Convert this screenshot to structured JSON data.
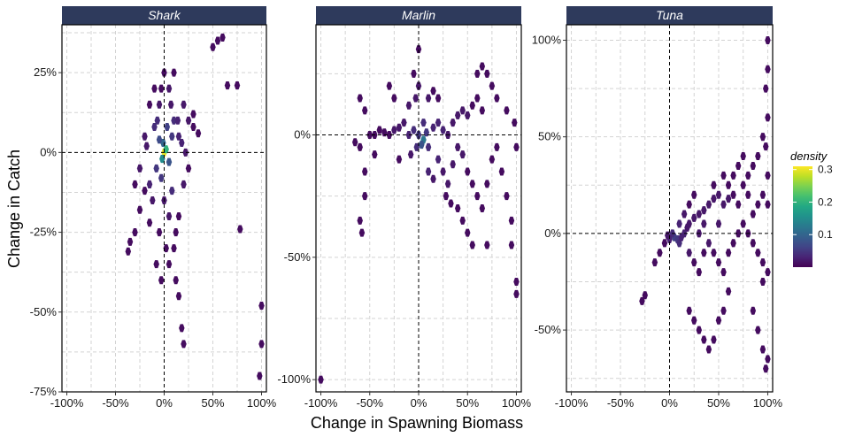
{
  "colors": {
    "strip": "#2e3a5c",
    "grid": "#d3d3d3",
    "panel_border": "#000000",
    "viridis": [
      "#440154",
      "#482475",
      "#414487",
      "#355f8d",
      "#2a788e",
      "#21918c",
      "#22a884",
      "#44bf70",
      "#7ad151",
      "#bddf26",
      "#fde725"
    ]
  },
  "chart_data": {
    "type": "hexbin",
    "xlabel": "Change in Spawning Biomass",
    "ylabel": "Change in Catch",
    "x_ticks": [
      -100,
      -50,
      0,
      50,
      100
    ],
    "x_tick_labels": [
      "-100%",
      "-50%",
      "0%",
      "50%",
      "100%"
    ],
    "xlim": [
      -105,
      105
    ],
    "reference_lines": {
      "x": 0,
      "y": 0,
      "style": "dashed"
    },
    "legend": {
      "title": "density",
      "placement": "right",
      "range": [
        0,
        0.31
      ],
      "ticks": [
        0.1,
        0.2,
        0.3
      ],
      "tick_labels": [
        "0.1",
        "0.2",
        "0.3"
      ]
    },
    "panels": [
      {
        "name": "Shark",
        "ylim": [
          -75,
          40
        ],
        "y_ticks": [
          -75,
          -50,
          -25,
          0,
          25
        ],
        "y_tick_labels": [
          "-75%",
          "-50%",
          "-25%",
          "0%",
          "25%"
        ],
        "points": [
          [
            0,
            0,
            0.3
          ],
          [
            -2,
            -2,
            0.15
          ],
          [
            2,
            1,
            0.2
          ],
          [
            -1,
            3,
            0.1
          ],
          [
            5,
            -3,
            0.08
          ],
          [
            -5,
            4,
            0.07
          ],
          [
            8,
            5,
            0.05
          ],
          [
            -8,
            -5,
            0.05
          ],
          [
            10,
            10,
            0.04
          ],
          [
            -10,
            8,
            0.04
          ],
          [
            15,
            5,
            0.03
          ],
          [
            -15,
            -10,
            0.03
          ],
          [
            20,
            15,
            0.02
          ],
          [
            -20,
            5,
            0.02
          ],
          [
            25,
            10,
            0.02
          ],
          [
            30,
            12,
            0.01
          ],
          [
            -25,
            -5,
            0.02
          ],
          [
            -30,
            -10,
            0.01
          ],
          [
            5,
            20,
            0.02
          ],
          [
            10,
            25,
            0.01
          ],
          [
            -5,
            15,
            0.02
          ],
          [
            -10,
            20,
            0.01
          ],
          [
            0,
            -15,
            0.02
          ],
          [
            5,
            -20,
            0.02
          ],
          [
            -5,
            -25,
            0.01
          ],
          [
            10,
            -30,
            0.01
          ],
          [
            15,
            -20,
            0.01
          ],
          [
            20,
            -10,
            0.02
          ],
          [
            25,
            -5,
            0.01
          ],
          [
            -15,
            15,
            0.01
          ],
          [
            55,
            35,
            0.01
          ],
          [
            60,
            36,
            0.01
          ],
          [
            65,
            21,
            0.01
          ],
          [
            75,
            21,
            0.01
          ],
          [
            50,
            33,
            0.01
          ],
          [
            -35,
            -28,
            0.01
          ],
          [
            -37,
            -31,
            0.01
          ],
          [
            -30,
            -25,
            0.01
          ],
          [
            12,
            -40,
            0.01
          ],
          [
            15,
            -45,
            0.01
          ],
          [
            18,
            -55,
            0.01
          ],
          [
            20,
            -60,
            0.01
          ],
          [
            100,
            -48,
            0.01
          ],
          [
            100,
            -60,
            0.01
          ],
          [
            98,
            -70,
            0.01
          ],
          [
            78,
            -24,
            0.01
          ],
          [
            8,
            -12,
            0.04
          ],
          [
            -3,
            -8,
            0.05
          ],
          [
            3,
            8,
            0.06
          ],
          [
            -12,
            -15,
            0.02
          ],
          [
            -25,
            -18,
            0.01
          ],
          [
            -20,
            -12,
            0.01
          ],
          [
            0,
            25,
            0.01
          ],
          [
            -3,
            20,
            0.01
          ],
          [
            14,
            10,
            0.03
          ],
          [
            18,
            3,
            0.03
          ],
          [
            -7,
            10,
            0.04
          ],
          [
            7,
            15,
            0.02
          ],
          [
            -18,
            2,
            0.02
          ],
          [
            22,
            0,
            0.02
          ],
          [
            30,
            8,
            0.01
          ],
          [
            35,
            6,
            0.01
          ],
          [
            2,
            -30,
            0.01
          ],
          [
            -8,
            -35,
            0.01
          ],
          [
            5,
            -35,
            0.01
          ],
          [
            -3,
            -40,
            0.01
          ],
          [
            12,
            -25,
            0.01
          ],
          [
            -15,
            -22,
            0.01
          ]
        ]
      },
      {
        "name": "Marlin",
        "ylim": [
          -105,
          45
        ],
        "y_ticks": [
          -100,
          -50,
          0
        ],
        "y_tick_labels": [
          "-100%",
          "-50%",
          "0%"
        ],
        "points": [
          [
            5,
            -2,
            0.12
          ],
          [
            3,
            -4,
            0.08
          ],
          [
            0,
            0,
            0.05
          ],
          [
            8,
            1,
            0.05
          ],
          [
            10,
            -5,
            0.04
          ],
          [
            -5,
            2,
            0.04
          ],
          [
            -10,
            0,
            0.03
          ],
          [
            15,
            3,
            0.03
          ],
          [
            20,
            5,
            0.03
          ],
          [
            25,
            2,
            0.03
          ],
          [
            30,
            0,
            0.02
          ],
          [
            35,
            5,
            0.02
          ],
          [
            40,
            8,
            0.02
          ],
          [
            45,
            10,
            0.02
          ],
          [
            50,
            8,
            0.02
          ],
          [
            55,
            12,
            0.01
          ],
          [
            60,
            15,
            0.01
          ],
          [
            65,
            10,
            0.01
          ],
          [
            20,
            -10,
            0.03
          ],
          [
            25,
            -15,
            0.02
          ],
          [
            30,
            -20,
            0.02
          ],
          [
            35,
            -12,
            0.02
          ],
          [
            40,
            -5,
            0.02
          ],
          [
            45,
            -8,
            0.02
          ],
          [
            50,
            -15,
            0.01
          ],
          [
            55,
            -20,
            0.01
          ],
          [
            60,
            -25,
            0.01
          ],
          [
            65,
            -30,
            0.01
          ],
          [
            70,
            -20,
            0.01
          ],
          [
            -15,
            5,
            0.02
          ],
          [
            -20,
            3,
            0.02
          ],
          [
            -25,
            2,
            0.02
          ],
          [
            -30,
            0,
            0.01
          ],
          [
            -35,
            1,
            0.01
          ],
          [
            -40,
            2,
            0.01
          ],
          [
            -45,
            0,
            0.01
          ],
          [
            -50,
            0,
            0.01
          ],
          [
            -60,
            -5,
            0.01
          ],
          [
            -65,
            -3,
            0.01
          ],
          [
            -60,
            15,
            0.01
          ],
          [
            -55,
            10,
            0.01
          ],
          [
            -3,
            15,
            0.02
          ],
          [
            0,
            20,
            0.02
          ],
          [
            -5,
            25,
            0.01
          ],
          [
            0,
            35,
            0.01
          ],
          [
            -30,
            20,
            0.01
          ],
          [
            -25,
            15,
            0.01
          ],
          [
            -10,
            12,
            0.02
          ],
          [
            10,
            15,
            0.02
          ],
          [
            15,
            18,
            0.01
          ],
          [
            20,
            15,
            0.01
          ],
          [
            60,
            25,
            0.01
          ],
          [
            65,
            28,
            0.01
          ],
          [
            70,
            25,
            0.01
          ],
          [
            75,
            20,
            0.01
          ],
          [
            80,
            15,
            0.01
          ],
          [
            -55,
            -15,
            0.01
          ],
          [
            -55,
            -25,
            0.01
          ],
          [
            -60,
            -35,
            0.01
          ],
          [
            -58,
            -40,
            0.01
          ],
          [
            40,
            -30,
            0.01
          ],
          [
            45,
            -35,
            0.01
          ],
          [
            50,
            -40,
            0.01
          ],
          [
            55,
            -45,
            0.01
          ],
          [
            70,
            -45,
            0.01
          ],
          [
            95,
            -35,
            0.01
          ],
          [
            95,
            -45,
            0.01
          ],
          [
            100,
            -60,
            0.01
          ],
          [
            100,
            -65,
            0.01
          ],
          [
            100,
            -5,
            0.01
          ],
          [
            98,
            5,
            0.01
          ],
          [
            -100,
            -100,
            0.01
          ],
          [
            10,
            -15,
            0.03
          ],
          [
            15,
            -18,
            0.02
          ],
          [
            28,
            -25,
            0.01
          ],
          [
            33,
            -28,
            0.01
          ],
          [
            5,
            5,
            0.04
          ],
          [
            -2,
            -5,
            0.04
          ],
          [
            75,
            -10,
            0.01
          ],
          [
            80,
            -5,
            0.01
          ],
          [
            85,
            -15,
            0.01
          ],
          [
            90,
            -25,
            0.01
          ],
          [
            -8,
            -8,
            0.02
          ],
          [
            -20,
            -10,
            0.01
          ],
          [
            -45,
            -8,
            0.01
          ],
          [
            90,
            10,
            0.01
          ]
        ]
      },
      {
        "name": "Tuna",
        "ylim": [
          -82,
          108
        ],
        "y_ticks": [
          -50,
          0,
          50,
          100
        ],
        "y_tick_labels": [
          "-50%",
          "0%",
          "50%",
          "100%"
        ],
        "points": [
          [
            5,
            -2,
            0.06
          ],
          [
            8,
            -3,
            0.05
          ],
          [
            3,
            0,
            0.04
          ],
          [
            10,
            -5,
            0.04
          ],
          [
            12,
            -2,
            0.03
          ],
          [
            15,
            0,
            0.03
          ],
          [
            0,
            -3,
            0.03
          ],
          [
            -2,
            -1,
            0.02
          ],
          [
            18,
            3,
            0.02
          ],
          [
            20,
            5,
            0.02
          ],
          [
            25,
            8,
            0.02
          ],
          [
            30,
            10,
            0.02
          ],
          [
            35,
            12,
            0.02
          ],
          [
            40,
            15,
            0.02
          ],
          [
            45,
            18,
            0.02
          ],
          [
            50,
            20,
            0.02
          ],
          [
            55,
            15,
            0.02
          ],
          [
            60,
            18,
            0.02
          ],
          [
            65,
            20,
            0.01
          ],
          [
            70,
            15,
            0.01
          ],
          [
            75,
            25,
            0.01
          ],
          [
            80,
            20,
            0.01
          ],
          [
            85,
            10,
            0.01
          ],
          [
            90,
            15,
            0.01
          ],
          [
            95,
            20,
            0.01
          ],
          [
            100,
            15,
            0.01
          ],
          [
            20,
            -10,
            0.02
          ],
          [
            25,
            -15,
            0.01
          ],
          [
            30,
            -20,
            0.01
          ],
          [
            35,
            -10,
            0.01
          ],
          [
            40,
            -5,
            0.02
          ],
          [
            45,
            -10,
            0.01
          ],
          [
            50,
            -15,
            0.01
          ],
          [
            55,
            -20,
            0.01
          ],
          [
            60,
            -10,
            0.01
          ],
          [
            65,
            -5,
            0.01
          ],
          [
            70,
            0,
            0.01
          ],
          [
            75,
            5,
            0.01
          ],
          [
            80,
            0,
            0.01
          ],
          [
            85,
            -5,
            0.01
          ],
          [
            90,
            -10,
            0.01
          ],
          [
            95,
            -15,
            0.01
          ],
          [
            100,
            -20,
            0.01
          ],
          [
            95,
            -25,
            0.01
          ],
          [
            100,
            30,
            0.01
          ],
          [
            98,
            45,
            0.01
          ],
          [
            100,
            60,
            0.01
          ],
          [
            98,
            75,
            0.01
          ],
          [
            100,
            85,
            0.01
          ],
          [
            100,
            100,
            0.01
          ],
          [
            95,
            50,
            0.01
          ],
          [
            90,
            40,
            0.01
          ],
          [
            85,
            35,
            0.01
          ],
          [
            80,
            30,
            0.01
          ],
          [
            70,
            35,
            0.01
          ],
          [
            65,
            30,
            0.01
          ],
          [
            75,
            40,
            0.01
          ],
          [
            -25,
            -32,
            0.01
          ],
          [
            -28,
            -35,
            0.01
          ],
          [
            -15,
            -15,
            0.01
          ],
          [
            -10,
            -10,
            0.01
          ],
          [
            -5,
            -5,
            0.01
          ],
          [
            20,
            -40,
            0.01
          ],
          [
            25,
            -45,
            0.01
          ],
          [
            30,
            -50,
            0.01
          ],
          [
            35,
            -55,
            0.01
          ],
          [
            40,
            -60,
            0.01
          ],
          [
            45,
            -55,
            0.01
          ],
          [
            50,
            -45,
            0.01
          ],
          [
            55,
            -40,
            0.01
          ],
          [
            60,
            -30,
            0.01
          ],
          [
            100,
            -65,
            0.01
          ],
          [
            98,
            -70,
            0.01
          ],
          [
            95,
            -60,
            0.01
          ],
          [
            90,
            -50,
            0.01
          ],
          [
            85,
            -40,
            0.01
          ],
          [
            15,
            10,
            0.02
          ],
          [
            10,
            5,
            0.03
          ],
          [
            30,
            0,
            0.02
          ],
          [
            35,
            5,
            0.02
          ],
          [
            50,
            5,
            0.02
          ],
          [
            45,
            25,
            0.01
          ],
          [
            55,
            30,
            0.01
          ],
          [
            60,
            25,
            0.01
          ],
          [
            25,
            20,
            0.01
          ],
          [
            20,
            15,
            0.01
          ]
        ]
      }
    ]
  }
}
